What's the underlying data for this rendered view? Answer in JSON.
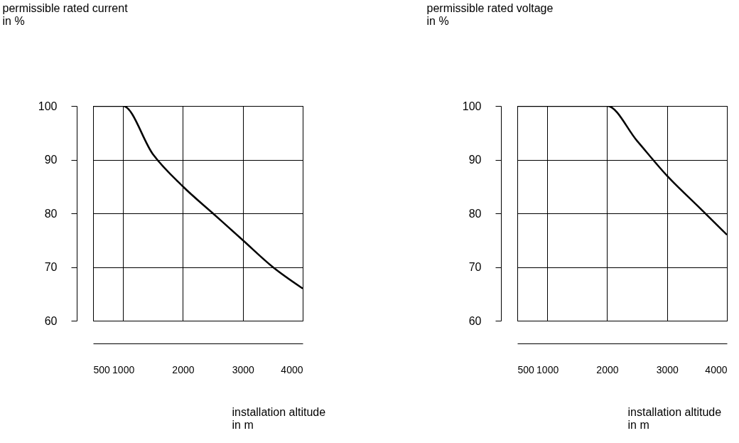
{
  "chart_data": [
    {
      "type": "line",
      "ylabel": "permissible rated current\nin %",
      "xlabel": "installation altitude\nin m",
      "x": [
        500,
        1000,
        1500,
        2000,
        2500,
        3000,
        3500,
        4000
      ],
      "series": [
        {
          "color": "#000000",
          "values": [
            100,
            100,
            91,
            85,
            80,
            75,
            70,
            66
          ]
        }
      ],
      "xlim": [
        500,
        4000
      ],
      "xticks": [
        500,
        1000,
        2000,
        3000,
        4000
      ],
      "ylim": [
        60,
        100
      ],
      "yticks": [
        60,
        70,
        80,
        90,
        100
      ],
      "grid": true,
      "line_style": "solid"
    },
    {
      "type": "line",
      "ylabel": "permissible rated voltage\nin %",
      "xlabel": "installation altitude\nin m",
      "x": [
        500,
        1000,
        1500,
        2000,
        2500,
        3000,
        3500,
        4000
      ],
      "series": [
        {
          "color": "#000000",
          "values": [
            100,
            100,
            100,
            100,
            93.5,
            87,
            81.5,
            76
          ]
        }
      ],
      "xlim": [
        500,
        4000
      ],
      "xticks": [
        500,
        1000,
        2000,
        3000,
        4000
      ],
      "ylim": [
        60,
        100
      ],
      "yticks": [
        60,
        70,
        80,
        90,
        100
      ],
      "grid": true,
      "line_style": "solid"
    }
  ]
}
